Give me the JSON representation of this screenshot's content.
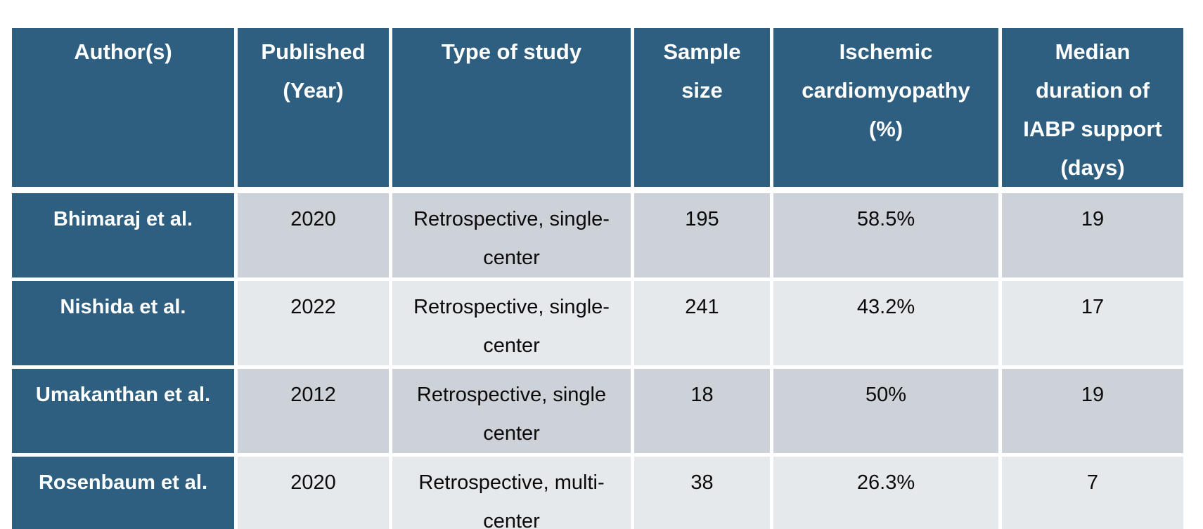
{
  "table": {
    "columns": [
      "Author(s)",
      "Published (Year)",
      "Type of study",
      "Sample size",
      "Ischemic cardiomyopathy (%)",
      "Median duration of IABP support (days)"
    ],
    "rows": [
      {
        "author": "Bhimaraj et al.",
        "published_year": "2020",
        "type_of_study": "Retrospective, single-center",
        "sample_size": "195",
        "ischemic_cardiomyopathy_pct": "58.5%",
        "median_iabp_duration_days": "19"
      },
      {
        "author": "Nishida et al.",
        "published_year": "2022",
        "type_of_study": "Retrospective, single-center",
        "sample_size": "241",
        "ischemic_cardiomyopathy_pct": "43.2%",
        "median_iabp_duration_days": "17"
      },
      {
        "author": "Umakanthan et al.",
        "published_year": "2012",
        "type_of_study": "Retrospective, single center",
        "sample_size": "18",
        "ischemic_cardiomyopathy_pct": "50%",
        "median_iabp_duration_days": "19"
      },
      {
        "author": "Rosenbaum et al.",
        "published_year": "2020",
        "type_of_study": "Retrospective, multi-center",
        "sample_size": "38",
        "ischemic_cardiomyopathy_pct": "26.3%",
        "median_iabp_duration_days": "7"
      }
    ]
  },
  "colors": {
    "header_bg": "#2E5F80",
    "header_text": "#FFFFFF",
    "row_odd_bg": "#CDD1D8",
    "row_even_bg": "#E6E9EC",
    "body_text": "#0B0B0B",
    "grid_gap": "#FFFFFF"
  }
}
